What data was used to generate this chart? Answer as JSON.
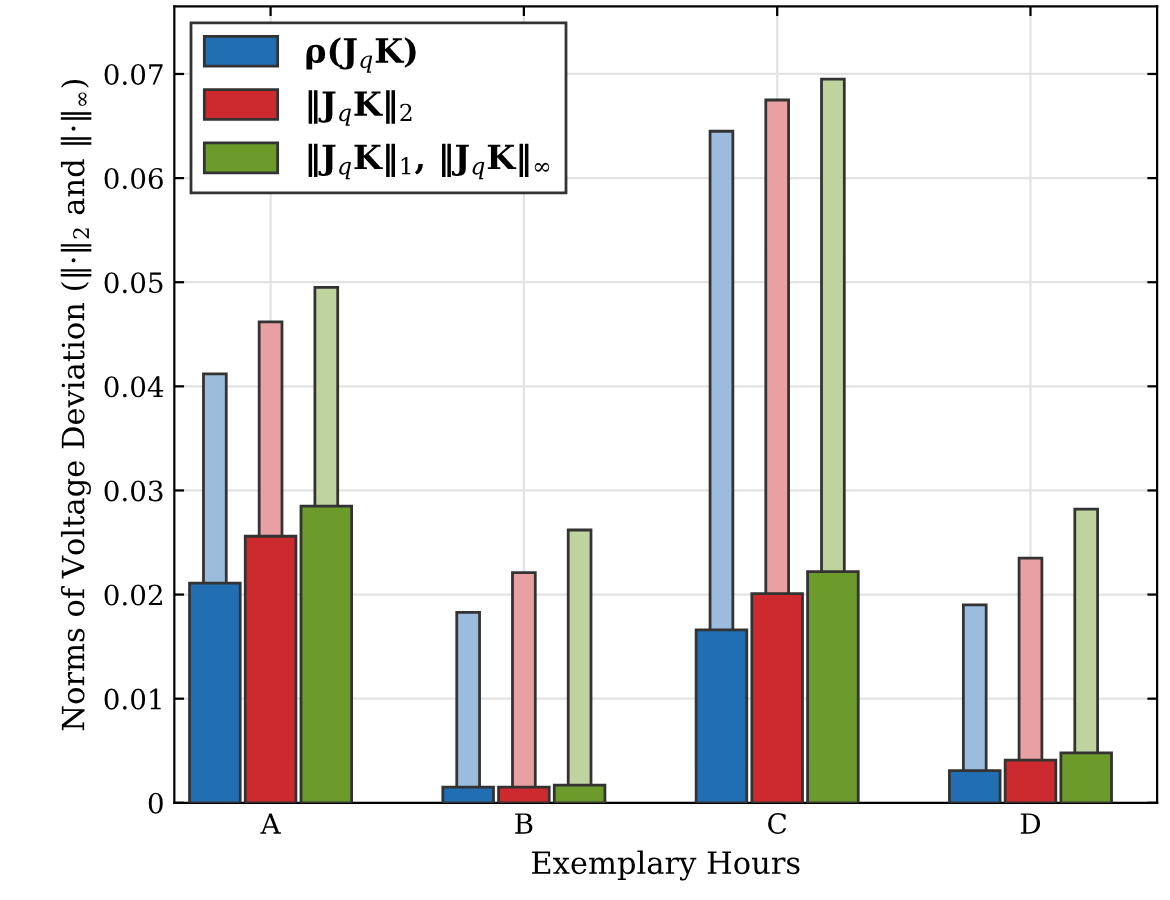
{
  "chart_data": {
    "type": "bar",
    "xlabel": "Exemplary Hours",
    "ylabel": "Norms of Voltage Deviation (‖·‖$_{2}$ and ‖·‖$_{∞}$)",
    "categories": [
      "A",
      "B",
      "C",
      "D"
    ],
    "series": [
      {
        "color": "#9bbcdc",
        "values": [
          0.0412,
          0.0183,
          0.0645,
          0.019
        ]
      },
      {
        "color": "#e8a0a3",
        "values": [
          0.0462,
          0.0221,
          0.0675,
          0.0235
        ]
      },
      {
        "color": "#bfd39e",
        "values": [
          0.0495,
          0.0262,
          0.0695,
          0.0282
        ]
      },
      {
        "name": "ρ(J$_{q}$K)",
        "color": "#216eb3",
        "values": [
          0.0211,
          0.0015,
          0.0166,
          0.0031
        ]
      },
      {
        "name": "‖J$_{q}$K‖$_{2}$",
        "color": "#cc2a2f",
        "values": [
          0.0256,
          0.0015,
          0.0201,
          0.0041
        ]
      },
      {
        "name": "‖J$_{q}$K‖$_{1}$, ‖J$_{q}$K‖$_{∞}$",
        "color": "#6c9b2b",
        "values": [
          0.0285,
          0.0017,
          0.0222,
          0.0048
        ]
      }
    ],
    "ylim": [
      0,
      0.0765
    ],
    "yticks": [
      0,
      0.01,
      0.02,
      0.03,
      0.04,
      0.05,
      0.06,
      0.07
    ],
    "grid": true,
    "legend": "top left"
  }
}
